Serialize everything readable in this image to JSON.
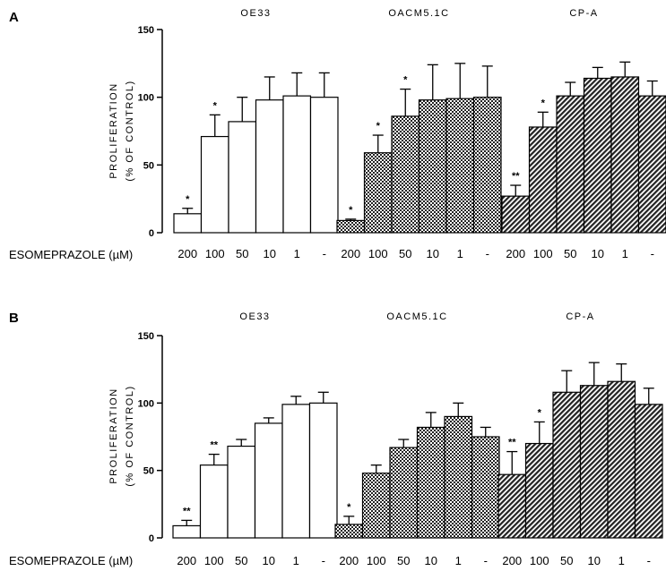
{
  "chart_data": [
    {
      "type": "bar",
      "panel": "A",
      "ylabel_line1": "PROLIFERATION",
      "ylabel_line2": "(% OF CONTROL)",
      "xlabel": "ESOMEPRAZOLE (µM)",
      "yticks": [
        0,
        50,
        100,
        150
      ],
      "ylim": [
        0,
        150
      ],
      "categories": [
        "200",
        "100",
        "50",
        "10",
        "1",
        "-"
      ],
      "groups": [
        {
          "name": "OE33",
          "pattern": "open",
          "values": [
            14,
            71,
            82,
            98,
            101,
            100
          ],
          "errors": [
            4,
            16,
            18,
            17,
            17,
            18
          ],
          "stars": [
            "*",
            "*",
            "",
            "",
            "",
            ""
          ]
        },
        {
          "name": "OACM5.1C",
          "pattern": "checker",
          "values": [
            9,
            59,
            86,
            98,
            99,
            100
          ],
          "errors": [
            1,
            13,
            20,
            26,
            26,
            23
          ],
          "stars": [
            "*",
            "*",
            "*",
            "",
            "",
            ""
          ]
        },
        {
          "name": "CP-A",
          "pattern": "hatch",
          "values": [
            27,
            78,
            101,
            114,
            115,
            101
          ],
          "errors": [
            8,
            11,
            10,
            8,
            11,
            11
          ],
          "stars": [
            "**",
            "*",
            "",
            "",
            "",
            ""
          ]
        }
      ]
    },
    {
      "type": "bar",
      "panel": "B",
      "ylabel_line1": "PROLIFERATION",
      "ylabel_line2": "(% OF CONTROL)",
      "xlabel": "ESOMEPRAZOLE (µM)",
      "yticks": [
        0,
        50,
        100,
        150
      ],
      "ylim": [
        0,
        150
      ],
      "categories": [
        "200",
        "100",
        "50",
        "10",
        "1",
        "-"
      ],
      "groups": [
        {
          "name": "OE33",
          "pattern": "open",
          "values": [
            9,
            54,
            68,
            85,
            99,
            100
          ],
          "errors": [
            4,
            8,
            5,
            4,
            6,
            8
          ],
          "stars": [
            "**",
            "**",
            "",
            "",
            "",
            ""
          ]
        },
        {
          "name": "OACM5.1C",
          "pattern": "checker",
          "values": [
            10,
            48,
            67,
            82,
            90,
            75
          ],
          "errors": [
            6,
            6,
            6,
            11,
            10,
            7
          ],
          "stars": [
            "*",
            "",
            "",
            "",
            "",
            ""
          ]
        },
        {
          "name": "CP-A",
          "pattern": "hatch",
          "values": [
            47,
            70,
            108,
            113,
            116,
            99
          ],
          "errors": [
            17,
            16,
            16,
            17,
            13,
            12
          ],
          "stars": [
            "**",
            "*",
            "",
            "",
            "",
            ""
          ]
        }
      ]
    }
  ]
}
